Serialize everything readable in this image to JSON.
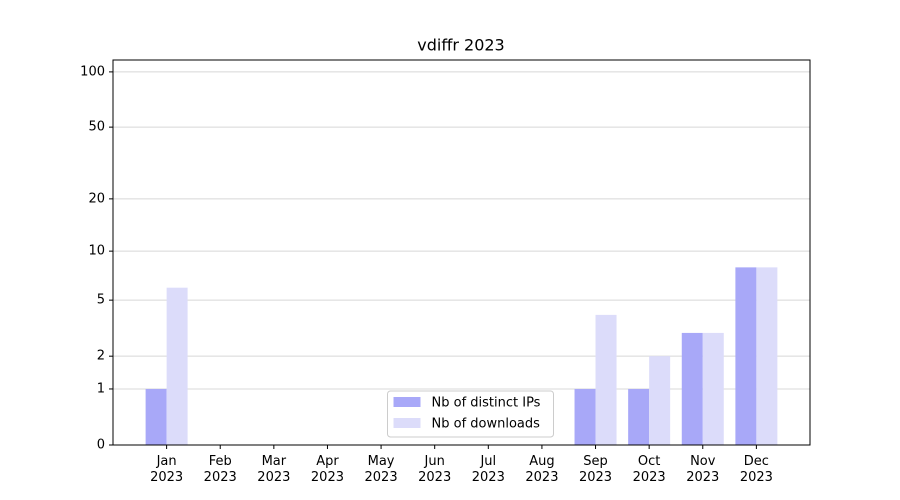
{
  "chart_data": {
    "type": "bar",
    "title": "vdiffr 2023",
    "categories": [
      "Jan 2023",
      "Feb 2023",
      "Mar 2023",
      "Apr 2023",
      "May 2023",
      "Jun 2023",
      "Jul 2023",
      "Aug 2023",
      "Sep 2023",
      "Oct 2023",
      "Nov 2023",
      "Dec 2023"
    ],
    "series": [
      {
        "name": "Nb of distinct IPs",
        "color": "#a8a8f8",
        "values": [
          1,
          0,
          0,
          0,
          0,
          0,
          0,
          0,
          1,
          1,
          3,
          8
        ]
      },
      {
        "name": "Nb of downloads",
        "color": "#dcdcfa",
        "values": [
          6,
          0,
          0,
          0,
          0,
          0,
          0,
          0,
          4,
          2,
          3,
          8
        ]
      }
    ],
    "y_scale": "log1p",
    "ylim": [
      0,
      116
    ],
    "yticks": [
      0,
      1,
      2,
      5,
      10,
      20,
      50,
      100
    ],
    "grid": true,
    "legend": "lower center"
  }
}
